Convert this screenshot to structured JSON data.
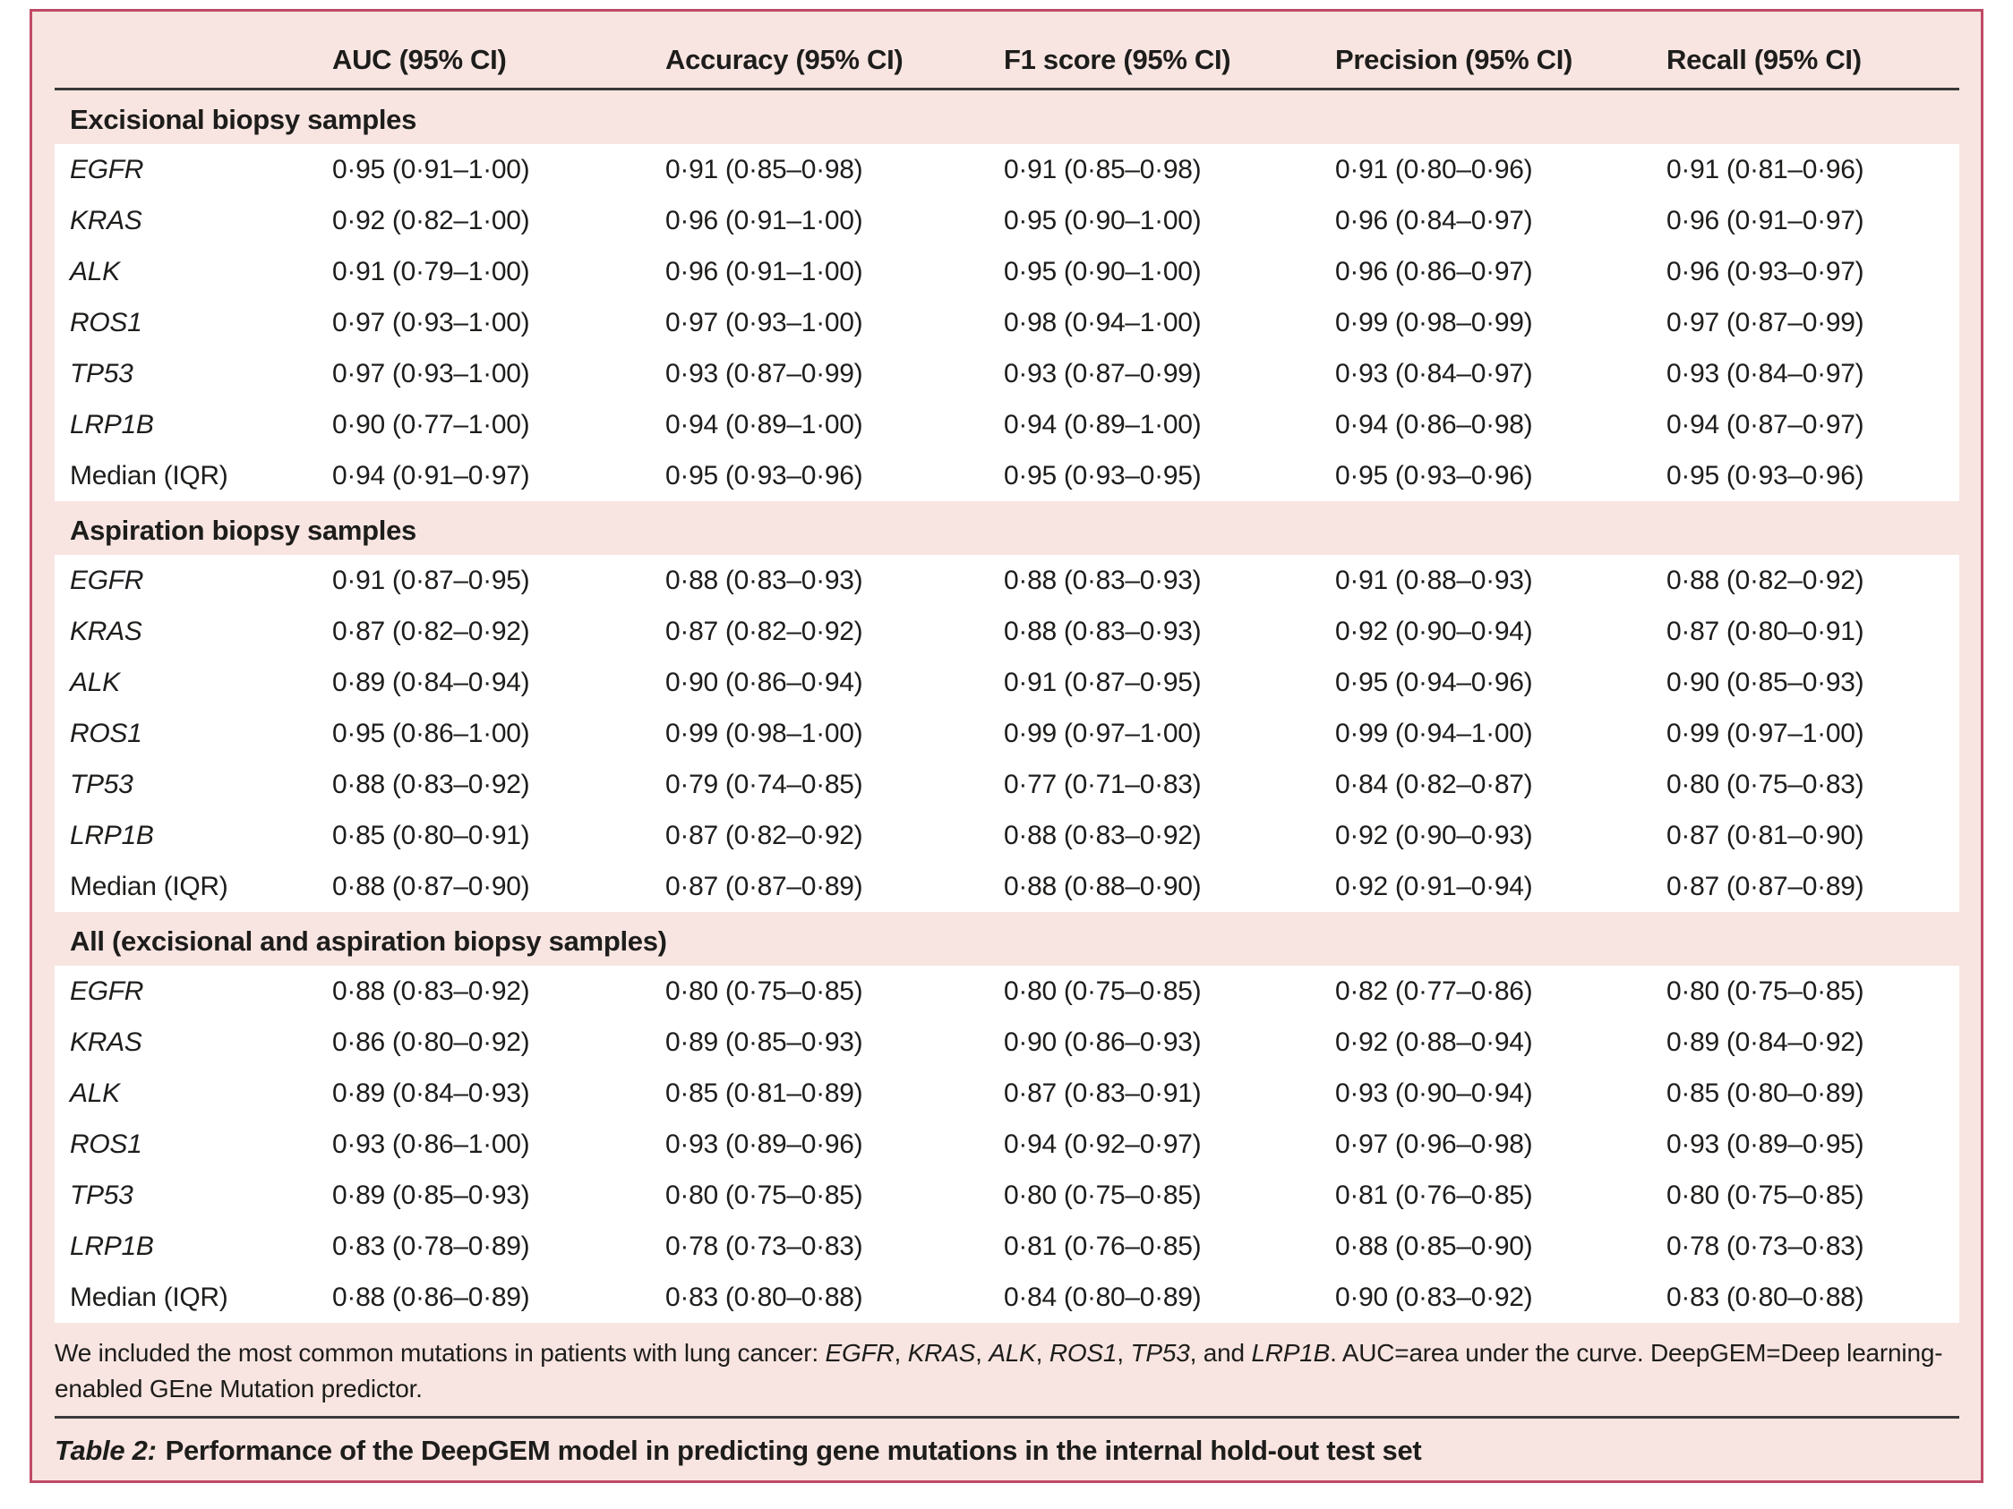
{
  "colors": {
    "panel_bg": "#f8e5e1",
    "border": "#bf4a66",
    "rule": "#3a3a39",
    "text": "#1d1d1b"
  },
  "table": {
    "columns": [
      "",
      "AUC (95% CI)",
      "Accuracy (95% CI)",
      "F1 score (95% CI)",
      "Precision (95% CI)",
      "Recall (95% CI)"
    ],
    "sections": [
      {
        "header": "Excisional biopsy samples",
        "rows": [
          {
            "label": "EGFR",
            "italic": true,
            "values": [
              "0·95 (0·91–1·00)",
              "0·91 (0·85–0·98)",
              "0·91 (0·85–0·98)",
              "0·91 (0·80–0·96)",
              "0·91 (0·81–0·96)"
            ]
          },
          {
            "label": "KRAS",
            "italic": true,
            "values": [
              "0·92 (0·82–1·00)",
              "0·96 (0·91–1·00)",
              "0·95 (0·90–1·00)",
              "0·96 (0·84–0·97)",
              "0·96 (0·91–0·97)"
            ]
          },
          {
            "label": "ALK",
            "italic": true,
            "values": [
              "0·91 (0·79–1·00)",
              "0·96 (0·91–1·00)",
              "0·95 (0·90–1·00)",
              "0·96 (0·86–0·97)",
              "0·96 (0·93–0·97)"
            ]
          },
          {
            "label": "ROS1",
            "italic": true,
            "values": [
              "0·97 (0·93–1·00)",
              "0·97 (0·93–1·00)",
              "0·98 (0·94–1·00)",
              "0·99 (0·98–0·99)",
              "0·97 (0·87–0·99)"
            ]
          },
          {
            "label": "TP53",
            "italic": true,
            "values": [
              "0·97 (0·93–1·00)",
              "0·93 (0·87–0·99)",
              "0·93 (0·87–0·99)",
              "0·93 (0·84–0·97)",
              "0·93 (0·84–0·97)"
            ]
          },
          {
            "label": "LRP1B",
            "italic": true,
            "values": [
              "0·90 (0·77–1·00)",
              "0·94 (0·89–1·00)",
              "0·94 (0·89–1·00)",
              "0·94 (0·86–0·98)",
              "0·94 (0·87–0·97)"
            ]
          },
          {
            "label": "Median (IQR)",
            "italic": false,
            "values": [
              "0·94 (0·91–0·97)",
              "0·95 (0·93–0·96)",
              "0·95 (0·93–0·95)",
              "0·95 (0·93–0·96)",
              "0·95 (0·93–0·96)"
            ]
          }
        ]
      },
      {
        "header": "Aspiration biopsy samples",
        "rows": [
          {
            "label": "EGFR",
            "italic": true,
            "values": [
              "0·91 (0·87–0·95)",
              "0·88 (0·83–0·93)",
              "0·88 (0·83–0·93)",
              "0·91 (0·88–0·93)",
              "0·88 (0·82–0·92)"
            ]
          },
          {
            "label": "KRAS",
            "italic": true,
            "values": [
              "0·87 (0·82–0·92)",
              "0·87 (0·82–0·92)",
              "0·88 (0·83–0·93)",
              "0·92 (0·90–0·94)",
              "0·87 (0·80–0·91)"
            ]
          },
          {
            "label": "ALK",
            "italic": true,
            "values": [
              "0·89 (0·84–0·94)",
              "0·90 (0·86–0·94)",
              "0·91 (0·87–0·95)",
              "0·95 (0·94–0·96)",
              "0·90 (0·85–0·93)"
            ]
          },
          {
            "label": "ROS1",
            "italic": true,
            "values": [
              "0·95 (0·86–1·00)",
              "0·99 (0·98–1·00)",
              "0·99 (0·97–1·00)",
              "0·99 (0·94–1·00)",
              "0·99 (0·97–1·00)"
            ]
          },
          {
            "label": "TP53",
            "italic": true,
            "values": [
              "0·88 (0·83–0·92)",
              "0·79 (0·74–0·85)",
              "0·77 (0·71–0·83)",
              "0·84 (0·82–0·87)",
              "0·80 (0·75–0·83)"
            ]
          },
          {
            "label": "LRP1B",
            "italic": true,
            "values": [
              "0·85 (0·80–0·91)",
              "0·87 (0·82–0·92)",
              "0·88 (0·83–0·92)",
              "0·92 (0·90–0·93)",
              "0·87 (0·81–0·90)"
            ]
          },
          {
            "label": "Median (IQR)",
            "italic": false,
            "values": [
              "0·88 (0·87–0·90)",
              "0·87 (0·87–0·89)",
              "0·88 (0·88–0·90)",
              "0·92 (0·91–0·94)",
              "0·87 (0·87–0·89)"
            ]
          }
        ]
      },
      {
        "header": "All (excisional and aspiration biopsy samples)",
        "rows": [
          {
            "label": "EGFR",
            "italic": true,
            "values": [
              "0·88 (0·83–0·92)",
              "0·80 (0·75–0·85)",
              "0·80 (0·75–0·85)",
              "0·82 (0·77–0·86)",
              "0·80 (0·75–0·85)"
            ]
          },
          {
            "label": "KRAS",
            "italic": true,
            "values": [
              "0·86 (0·80–0·92)",
              "0·89 (0·85–0·93)",
              "0·90 (0·86–0·93)",
              "0·92 (0·88–0·94)",
              "0·89 (0·84–0·92)"
            ]
          },
          {
            "label": "ALK",
            "italic": true,
            "values": [
              "0·89 (0·84–0·93)",
              "0·85 (0·81–0·89)",
              "0·87 (0·83–0·91)",
              "0·93 (0·90–0·94)",
              "0·85 (0·80–0·89)"
            ]
          },
          {
            "label": "ROS1",
            "italic": true,
            "values": [
              "0·93 (0·86–1·00)",
              "0·93 (0·89–0·96)",
              "0·94 (0·92–0·97)",
              "0·97 (0·96–0·98)",
              "0·93 (0·89–0·95)"
            ]
          },
          {
            "label": "TP53",
            "italic": true,
            "values": [
              "0·89 (0·85–0·93)",
              "0·80 (0·75–0·85)",
              "0·80 (0·75–0·85)",
              "0·81 (0·76–0·85)",
              "0·80 (0·75–0·85)"
            ]
          },
          {
            "label": "LRP1B",
            "italic": true,
            "values": [
              "0·83 (0·78–0·89)",
              "0·78 (0·73–0·83)",
              "0·81 (0·76–0·85)",
              "0·88 (0·85–0·90)",
              "0·78 (0·73–0·83)"
            ]
          },
          {
            "label": "Median (IQR)",
            "italic": false,
            "values": [
              "0·88 (0·86–0·89)",
              "0·83 (0·80–0·88)",
              "0·84 (0·80–0·89)",
              "0·90 (0·83–0·92)",
              "0·83 (0·80–0·88)"
            ]
          }
        ]
      }
    ],
    "footnote_parts": [
      {
        "t": "We included the most common mutations in patients with lung cancer: ",
        "i": false
      },
      {
        "t": "EGFR",
        "i": true
      },
      {
        "t": ", ",
        "i": false
      },
      {
        "t": "KRAS",
        "i": true
      },
      {
        "t": ", ",
        "i": false
      },
      {
        "t": "ALK",
        "i": true
      },
      {
        "t": ", ",
        "i": false
      },
      {
        "t": "ROS1",
        "i": true
      },
      {
        "t": ", ",
        "i": false
      },
      {
        "t": "TP53",
        "i": true
      },
      {
        "t": ", and ",
        "i": false
      },
      {
        "t": "LRP1B",
        "i": true
      },
      {
        "t": ". AUC=area under the curve. DeepGEM=Deep learning-enabled GEne Mutation predictor.",
        "i": false
      }
    ],
    "caption_label": "Table 2:",
    "caption_text": "Performance of the DeepGEM model in predicting gene mutations in the internal hold-out test set"
  }
}
